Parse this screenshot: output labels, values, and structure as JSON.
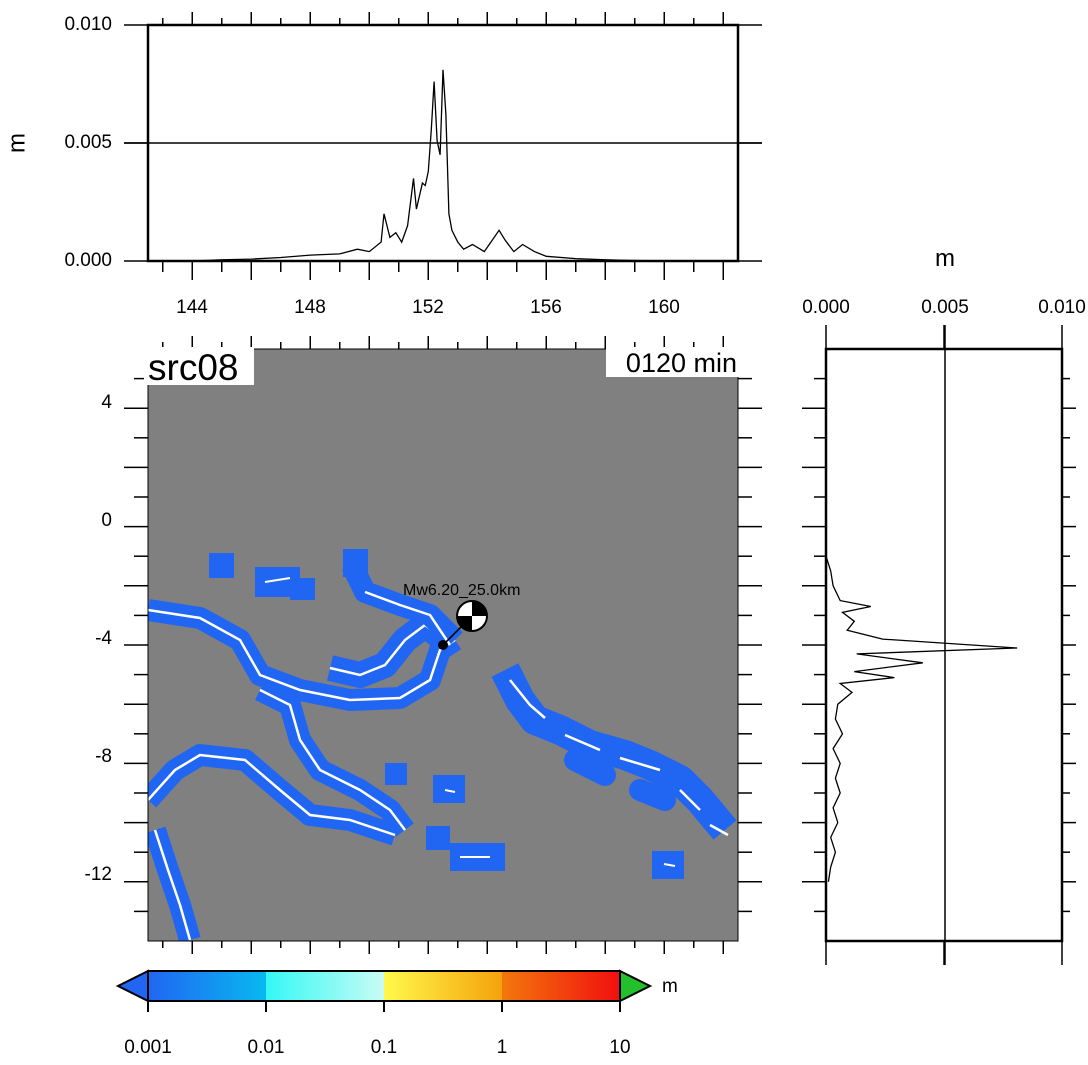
{
  "top_profile": {
    "ylabel": "m",
    "y_ticks": [
      "0.000",
      "0.005",
      "0.010"
    ],
    "x_ticks": [
      "144",
      "148",
      "152",
      "156",
      "160"
    ],
    "ylim": [
      0,
      0.01
    ],
    "xlim": [
      142.5,
      162.5
    ]
  },
  "right_profile": {
    "xlabel": "m",
    "x_ticks": [
      "0.000",
      "0.005",
      "0.010"
    ],
    "xlim": [
      0,
      0.01
    ],
    "ylim": [
      -14,
      6
    ]
  },
  "map": {
    "source_label": "src08",
    "time_label": "0120 min",
    "event_label": "Mw6.20_25.0km",
    "y_ticks": [
      "4",
      "0",
      "-4",
      "-8",
      "-12"
    ],
    "epicenter": {
      "lon": 152.5,
      "lat": -4.2
    },
    "beachball": {
      "lon": 153.4,
      "lat": -3.2
    },
    "colors": {
      "ocean": "#808080",
      "wave": "#2166f2",
      "coast": "#ffffff"
    }
  },
  "colorbar": {
    "unit": "m",
    "labels": [
      "0.001",
      "0.01",
      "0.1",
      "1",
      "10"
    ],
    "under_color": "#2166f2",
    "over_color": "#22c02a"
  },
  "chart_data": [
    {
      "type": "line",
      "ylabel": "m",
      "xlim": [
        142.5,
        162.5
      ],
      "ylim": [
        0,
        0.01
      ],
      "grid": "y=0.005 line",
      "x": [
        144.0,
        145.0,
        146.0,
        147.0,
        148.0,
        149.0,
        149.6,
        150.0,
        150.4,
        150.5,
        150.7,
        150.9,
        151.1,
        151.3,
        151.5,
        151.6,
        151.8,
        151.9,
        152.0,
        152.1,
        152.2,
        152.3,
        152.4,
        152.5,
        152.6,
        152.7,
        152.8,
        153.0,
        153.2,
        153.5,
        153.9,
        154.4,
        154.6,
        154.9,
        155.2,
        155.6,
        156.0,
        157.0,
        158.0,
        159.0,
        160.0,
        162.0
      ],
      "y": [
        0.0,
        5e-05,
        8e-05,
        0.00015,
        0.00025,
        0.0003,
        0.0005,
        0.0004,
        0.0008,
        0.002,
        0.001,
        0.0012,
        0.0008,
        0.0015,
        0.0035,
        0.0022,
        0.0033,
        0.0032,
        0.0038,
        0.0055,
        0.0076,
        0.0051,
        0.0045,
        0.0081,
        0.0062,
        0.002,
        0.0013,
        0.0008,
        0.0005,
        0.0007,
        0.0004,
        0.0013,
        0.0009,
        0.0004,
        0.0007,
        0.0004,
        0.0002,
        0.0001,
        5e-05,
        2e-05,
        0.0,
        0.0
      ]
    },
    {
      "type": "line",
      "xlabel": "m",
      "xlim": [
        0,
        0.01
      ],
      "ylim": [
        -14,
        6
      ],
      "grid": "x=0.005 line",
      "lat": [
        -1.0,
        -1.5,
        -2.0,
        -2.5,
        -2.7,
        -2.9,
        -3.2,
        -3.5,
        -3.8,
        -4.1,
        -4.3,
        -4.6,
        -4.9,
        -5.1,
        -5.3,
        -5.6,
        -6.0,
        -6.5,
        -7.0,
        -7.5,
        -8.0,
        -8.5,
        -9.0,
        -9.5,
        -10.0,
        -10.5,
        -11.0,
        -11.5,
        -12.0
      ],
      "value": [
        0.0,
        0.0002,
        0.0003,
        0.0006,
        0.0019,
        0.0007,
        0.0012,
        0.0009,
        0.0024,
        0.0081,
        0.0013,
        0.0041,
        0.0012,
        0.0029,
        0.0006,
        0.0011,
        0.0005,
        0.0004,
        0.0007,
        0.0003,
        0.0006,
        0.0004,
        0.0006,
        0.0003,
        0.0005,
        0.0002,
        0.0004,
        0.0002,
        0.0001
      ]
    }
  ]
}
